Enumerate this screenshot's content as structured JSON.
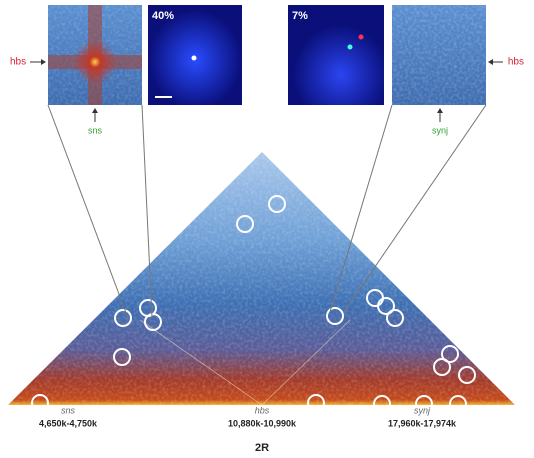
{
  "insets": {
    "left_locus_label": "hbs",
    "left_gene_label": "sns",
    "left_percent": "40%",
    "right_percent": "7%",
    "right_locus_label": "hbs",
    "right_gene_label": "synj"
  },
  "loci": [
    {
      "gene": "sns",
      "range": "4,650k-4,750k"
    },
    {
      "gene": "hbs",
      "range": "10,880k-10,990k"
    },
    {
      "gene": "synj",
      "range": "17,960k-17,974k"
    }
  ],
  "chromosome": "2R"
}
